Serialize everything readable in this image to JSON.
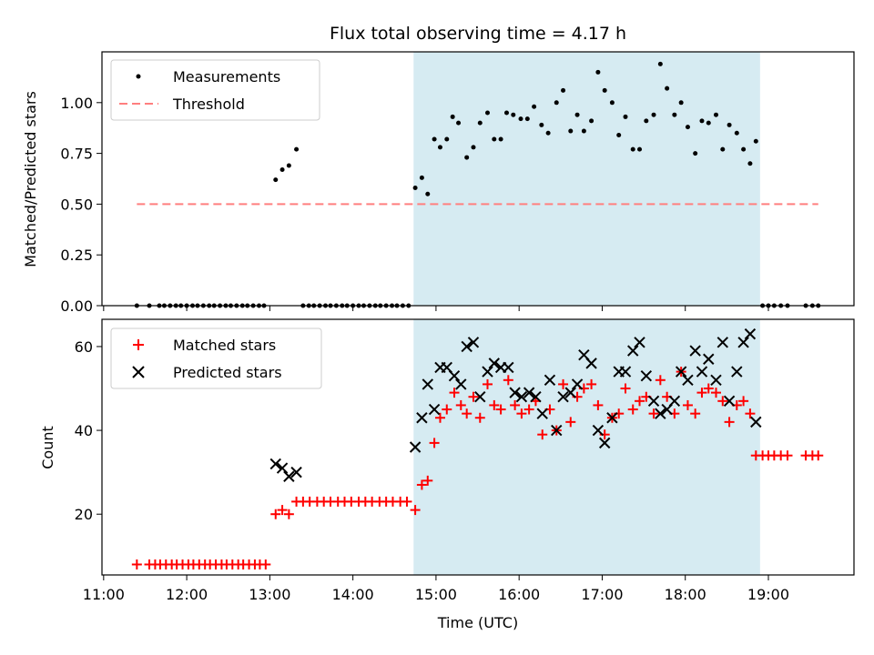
{
  "title": "Flux total observing time = 4.17 h",
  "colors": {
    "highlight": "#add8e6",
    "matched": "#ff0000",
    "predicted": "#000000",
    "threshold": "#ff7f7f"
  },
  "top": {
    "ylabel": "Matched/Predicted stars",
    "yticks": [
      "0.00",
      "0.25",
      "0.50",
      "0.75",
      "1.00"
    ],
    "legend": {
      "measurements": "Measurements",
      "threshold": "Threshold"
    }
  },
  "bottom": {
    "ylabel": "Count",
    "yticks": [
      "20",
      "40",
      "60"
    ],
    "legend": {
      "matched": "Matched stars",
      "predicted": "Predicted stars"
    }
  },
  "xlabel": "Time (UTC)",
  "xticks": [
    "11:00",
    "12:00",
    "13:00",
    "14:00",
    "15:00",
    "16:00",
    "17:00",
    "18:00",
    "19:00"
  ],
  "chart_data": [
    {
      "type": "scatter",
      "title": "Flux total observing time = 4.17 h",
      "xlabel": "",
      "ylabel": "Matched/Predicted stars",
      "x_unit": "hour UTC",
      "xlim": [
        10.98,
        20.03
      ],
      "ylim": [
        0.0,
        1.25
      ],
      "shaded_interval": [
        14.73,
        18.9
      ],
      "threshold": {
        "value": 0.5,
        "x_range": [
          11.4,
          19.6
        ],
        "name": "Threshold",
        "style": "dashed"
      },
      "legend_position": "top-left",
      "series": [
        {
          "name": "Measurements",
          "points": [
            [
              11.4,
              0
            ],
            [
              11.55,
              0
            ],
            [
              11.67,
              0
            ],
            [
              11.73,
              0
            ],
            [
              11.8,
              0
            ],
            [
              11.87,
              0
            ],
            [
              11.93,
              0
            ],
            [
              12.0,
              0
            ],
            [
              12.07,
              0
            ],
            [
              12.13,
              0
            ],
            [
              12.2,
              0
            ],
            [
              12.27,
              0
            ],
            [
              12.33,
              0
            ],
            [
              12.4,
              0
            ],
            [
              12.47,
              0
            ],
            [
              12.53,
              0
            ],
            [
              12.6,
              0
            ],
            [
              12.67,
              0
            ],
            [
              12.73,
              0
            ],
            [
              12.8,
              0
            ],
            [
              12.87,
              0
            ],
            [
              12.93,
              0
            ],
            [
              13.07,
              0.62
            ],
            [
              13.15,
              0.67
            ],
            [
              13.23,
              0.69
            ],
            [
              13.32,
              0.77
            ],
            [
              13.4,
              0
            ],
            [
              13.47,
              0
            ],
            [
              13.53,
              0
            ],
            [
              13.6,
              0
            ],
            [
              13.67,
              0
            ],
            [
              13.73,
              0
            ],
            [
              13.8,
              0
            ],
            [
              13.87,
              0
            ],
            [
              13.93,
              0
            ],
            [
              14.0,
              0
            ],
            [
              14.07,
              0
            ],
            [
              14.13,
              0
            ],
            [
              14.2,
              0
            ],
            [
              14.27,
              0
            ],
            [
              14.33,
              0
            ],
            [
              14.4,
              0
            ],
            [
              14.47,
              0
            ],
            [
              14.53,
              0
            ],
            [
              14.6,
              0
            ],
            [
              14.67,
              0
            ],
            [
              14.75,
              0.58
            ],
            [
              14.83,
              0.63
            ],
            [
              14.9,
              0.55
            ],
            [
              14.98,
              0.82
            ],
            [
              15.05,
              0.78
            ],
            [
              15.13,
              0.82
            ],
            [
              15.2,
              0.93
            ],
            [
              15.27,
              0.9
            ],
            [
              15.37,
              0.73
            ],
            [
              15.45,
              0.78
            ],
            [
              15.53,
              0.9
            ],
            [
              15.62,
              0.95
            ],
            [
              15.7,
              0.82
            ],
            [
              15.78,
              0.82
            ],
            [
              15.85,
              0.95
            ],
            [
              15.93,
              0.94
            ],
            [
              16.02,
              0.92
            ],
            [
              16.1,
              0.92
            ],
            [
              16.18,
              0.98
            ],
            [
              16.27,
              0.89
            ],
            [
              16.35,
              0.85
            ],
            [
              16.45,
              1.0
            ],
            [
              16.53,
              1.06
            ],
            [
              16.62,
              0.86
            ],
            [
              16.7,
              0.94
            ],
            [
              16.78,
              0.86
            ],
            [
              16.87,
              0.91
            ],
            [
              16.95,
              1.15
            ],
            [
              17.03,
              1.06
            ],
            [
              17.12,
              1.0
            ],
            [
              17.2,
              0.84
            ],
            [
              17.28,
              0.93
            ],
            [
              17.37,
              0.77
            ],
            [
              17.45,
              0.77
            ],
            [
              17.53,
              0.91
            ],
            [
              17.62,
              0.94
            ],
            [
              17.7,
              1.19
            ],
            [
              17.78,
              1.07
            ],
            [
              17.87,
              0.94
            ],
            [
              17.95,
              1.0
            ],
            [
              18.03,
              0.88
            ],
            [
              18.12,
              0.75
            ],
            [
              18.2,
              0.91
            ],
            [
              18.28,
              0.9
            ],
            [
              18.37,
              0.94
            ],
            [
              18.45,
              0.77
            ],
            [
              18.53,
              0.89
            ],
            [
              18.62,
              0.85
            ],
            [
              18.7,
              0.77
            ],
            [
              18.78,
              0.7
            ],
            [
              18.85,
              0.81
            ],
            [
              18.93,
              0
            ],
            [
              19.0,
              0
            ],
            [
              19.07,
              0
            ],
            [
              19.15,
              0
            ],
            [
              19.23,
              0
            ],
            [
              19.45,
              0
            ],
            [
              19.53,
              0
            ],
            [
              19.6,
              0
            ]
          ]
        }
      ]
    },
    {
      "type": "scatter",
      "title": "",
      "xlabel": "Time (UTC)",
      "ylabel": "Count",
      "x_unit": "hour UTC",
      "xlim": [
        10.98,
        20.03
      ],
      "ylim": [
        5.5,
        66.5
      ],
      "shaded_interval": [
        14.73,
        18.9
      ],
      "legend_position": "top-left",
      "series": [
        {
          "name": "Matched stars",
          "marker": "plus",
          "points": [
            [
              11.4,
              8
            ],
            [
              11.55,
              8
            ],
            [
              11.62,
              8
            ],
            [
              11.68,
              8
            ],
            [
              11.75,
              8
            ],
            [
              11.82,
              8
            ],
            [
              11.88,
              8
            ],
            [
              11.95,
              8
            ],
            [
              12.02,
              8
            ],
            [
              12.08,
              8
            ],
            [
              12.15,
              8
            ],
            [
              12.22,
              8
            ],
            [
              12.28,
              8
            ],
            [
              12.35,
              8
            ],
            [
              12.42,
              8
            ],
            [
              12.48,
              8
            ],
            [
              12.55,
              8
            ],
            [
              12.62,
              8
            ],
            [
              12.68,
              8
            ],
            [
              12.75,
              8
            ],
            [
              12.82,
              8
            ],
            [
              12.88,
              8
            ],
            [
              12.95,
              8
            ],
            [
              13.07,
              20
            ],
            [
              13.15,
              21
            ],
            [
              13.23,
              20
            ],
            [
              13.32,
              23
            ],
            [
              13.4,
              23
            ],
            [
              13.48,
              23
            ],
            [
              13.57,
              23
            ],
            [
              13.65,
              23
            ],
            [
              13.73,
              23
            ],
            [
              13.82,
              23
            ],
            [
              13.9,
              23
            ],
            [
              13.98,
              23
            ],
            [
              14.07,
              23
            ],
            [
              14.15,
              23
            ],
            [
              14.23,
              23
            ],
            [
              14.32,
              23
            ],
            [
              14.4,
              23
            ],
            [
              14.48,
              23
            ],
            [
              14.57,
              23
            ],
            [
              14.65,
              23
            ],
            [
              14.75,
              21
            ],
            [
              14.83,
              27
            ],
            [
              14.9,
              28
            ],
            [
              14.98,
              37
            ],
            [
              15.05,
              43
            ],
            [
              15.13,
              45
            ],
            [
              15.22,
              49
            ],
            [
              15.3,
              46
            ],
            [
              15.37,
              44
            ],
            [
              15.45,
              48
            ],
            [
              15.53,
              43
            ],
            [
              15.62,
              51
            ],
            [
              15.7,
              46
            ],
            [
              15.78,
              45
            ],
            [
              15.87,
              52
            ],
            [
              15.95,
              46
            ],
            [
              16.03,
              44
            ],
            [
              16.12,
              45
            ],
            [
              16.2,
              47
            ],
            [
              16.28,
              39
            ],
            [
              16.37,
              45
            ],
            [
              16.45,
              40
            ],
            [
              16.53,
              51
            ],
            [
              16.62,
              42
            ],
            [
              16.7,
              48
            ],
            [
              16.78,
              50
            ],
            [
              16.87,
              51
            ],
            [
              16.95,
              46
            ],
            [
              17.03,
              39
            ],
            [
              17.12,
              43
            ],
            [
              17.2,
              44
            ],
            [
              17.28,
              50
            ],
            [
              17.37,
              45
            ],
            [
              17.45,
              47
            ],
            [
              17.53,
              48
            ],
            [
              17.62,
              44
            ],
            [
              17.7,
              52
            ],
            [
              17.78,
              48
            ],
            [
              17.87,
              44
            ],
            [
              17.95,
              54
            ],
            [
              18.03,
              46
            ],
            [
              18.12,
              44
            ],
            [
              18.2,
              49
            ],
            [
              18.28,
              50
            ],
            [
              18.37,
              49
            ],
            [
              18.45,
              47
            ],
            [
              18.53,
              42
            ],
            [
              18.62,
              46
            ],
            [
              18.7,
              47
            ],
            [
              18.78,
              44
            ],
            [
              18.85,
              34
            ],
            [
              18.93,
              34
            ],
            [
              19.0,
              34
            ],
            [
              19.07,
              34
            ],
            [
              19.15,
              34
            ],
            [
              19.23,
              34
            ],
            [
              19.45,
              34
            ],
            [
              19.53,
              34
            ],
            [
              19.6,
              34
            ]
          ]
        },
        {
          "name": "Predicted stars",
          "marker": "x",
          "points": [
            [
              13.07,
              32
            ],
            [
              13.15,
              31
            ],
            [
              13.23,
              29
            ],
            [
              13.32,
              30
            ],
            [
              14.75,
              36
            ],
            [
              14.83,
              43
            ],
            [
              14.9,
              51
            ],
            [
              14.98,
              45
            ],
            [
              15.05,
              55
            ],
            [
              15.13,
              55
            ],
            [
              15.22,
              53
            ],
            [
              15.3,
              51
            ],
            [
              15.37,
              60
            ],
            [
              15.45,
              61
            ],
            [
              15.53,
              48
            ],
            [
              15.62,
              54
            ],
            [
              15.7,
              56
            ],
            [
              15.78,
              55
            ],
            [
              15.87,
              55
            ],
            [
              15.95,
              49
            ],
            [
              16.03,
              48
            ],
            [
              16.12,
              49
            ],
            [
              16.2,
              48
            ],
            [
              16.28,
              44
            ],
            [
              16.37,
              52
            ],
            [
              16.45,
              40
            ],
            [
              16.53,
              48
            ],
            [
              16.62,
              49
            ],
            [
              16.7,
              51
            ],
            [
              16.78,
              58
            ],
            [
              16.87,
              56
            ],
            [
              16.95,
              40
            ],
            [
              17.03,
              37
            ],
            [
              17.12,
              43
            ],
            [
              17.2,
              54
            ],
            [
              17.28,
              54
            ],
            [
              17.37,
              59
            ],
            [
              17.45,
              61
            ],
            [
              17.53,
              53
            ],
            [
              17.62,
              47
            ],
            [
              17.7,
              44
            ],
            [
              17.78,
              45
            ],
            [
              17.87,
              47
            ],
            [
              17.95,
              54
            ],
            [
              18.03,
              52
            ],
            [
              18.12,
              59
            ],
            [
              18.2,
              54
            ],
            [
              18.28,
              57
            ],
            [
              18.37,
              52
            ],
            [
              18.45,
              61
            ],
            [
              18.53,
              47
            ],
            [
              18.62,
              54
            ],
            [
              18.7,
              61
            ],
            [
              18.78,
              63
            ],
            [
              18.85,
              42
            ]
          ]
        }
      ]
    }
  ]
}
